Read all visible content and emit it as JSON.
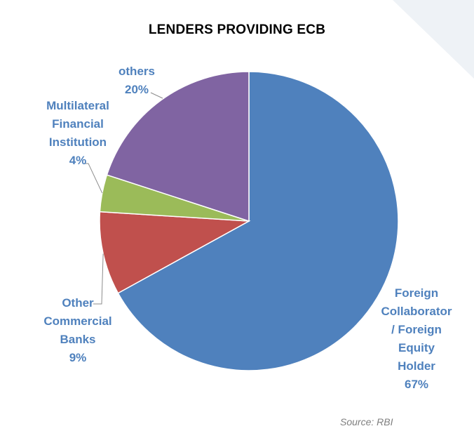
{
  "chart_data": {
    "type": "pie",
    "title": "LENDERS PROVIDING ECB",
    "slices": [
      {
        "label_lines": [
          "Foreign",
          "Collaborator",
          "/ Foreign",
          "Equity",
          "Holder"
        ],
        "pct_label": "67%",
        "value": 67,
        "color": "#4F81BD"
      },
      {
        "label_lines": [
          "Other",
          "Commercial",
          "Banks"
        ],
        "pct_label": "9%",
        "value": 9,
        "color": "#C0504D"
      },
      {
        "label_lines": [
          "Multilateral",
          "Financial",
          "Institution"
        ],
        "pct_label": "4%",
        "value": 4,
        "color": "#9BBB59"
      },
      {
        "label_lines": [
          "others"
        ],
        "pct_label": "20%",
        "value": 20,
        "color": "#8064A2"
      }
    ],
    "legend": "none",
    "data_labels": "outside with leader lines"
  },
  "source": "Source: RBI",
  "colors": {
    "label_text": "#4F81BD",
    "corner_decoration": "#EEF2F6"
  }
}
